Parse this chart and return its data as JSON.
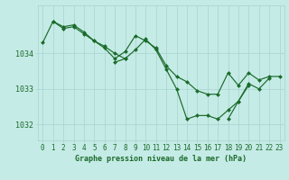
{
  "title": "Graphe pression niveau de la mer (hPa)",
  "bg_color": "#c5ebe6",
  "grid_color": "#a8d4ce",
  "line_color": "#1a6b2a",
  "marker_color": "#1a6b2a",
  "tick_label_color": "#1a6b2a",
  "ylim": [
    1031.55,
    1035.35
  ],
  "xlim": [
    -0.5,
    23.5
  ],
  "yticks": [
    1032,
    1033,
    1034
  ],
  "xticks": [
    0,
    1,
    2,
    3,
    4,
    5,
    6,
    7,
    8,
    9,
    10,
    11,
    12,
    13,
    14,
    15,
    16,
    17,
    18,
    19,
    20,
    21,
    22,
    23
  ],
  "series": [
    [
      0,
      1034.3
    ],
    [
      1,
      1034.9
    ],
    [
      2,
      1034.7
    ],
    [
      3,
      1034.75
    ],
    [
      4,
      1034.55
    ],
    [
      5,
      1034.35
    ],
    [
      6,
      1034.15
    ],
    [
      7,
      1033.85
    ],
    [
      8,
      1034.05
    ],
    [
      9,
      1034.5
    ],
    [
      10,
      1034.35
    ],
    [
      11,
      1034.15
    ],
    [
      12,
      1033.65
    ],
    [
      13,
      1033.35
    ],
    [
      14,
      1033.2
    ],
    [
      15,
      1032.95
    ],
    [
      16,
      1032.85
    ],
    [
      17,
      1032.85
    ],
    [
      18,
      1033.45
    ],
    [
      19,
      1033.1
    ],
    [
      20,
      1033.45
    ],
    [
      21,
      1033.25
    ],
    [
      22,
      1033.35
    ],
    [
      23,
      1033.35
    ]
  ],
  "series2": [
    [
      1,
      1034.9
    ],
    [
      2,
      1034.75
    ],
    [
      3,
      1034.8
    ],
    [
      4,
      1034.6
    ],
    [
      5,
      1034.35
    ],
    [
      6,
      1034.2
    ],
    [
      7,
      1034.0
    ],
    [
      8,
      1033.85
    ]
  ],
  "series3": [
    [
      7,
      1033.75
    ],
    [
      8,
      1033.85
    ],
    [
      9,
      1034.1
    ],
    [
      10,
      1034.4
    ],
    [
      11,
      1034.1
    ],
    [
      12,
      1033.55
    ],
    [
      13,
      1033.0
    ],
    [
      14,
      1032.15
    ],
    [
      15,
      1032.25
    ],
    [
      16,
      1032.25
    ],
    [
      17,
      1032.15
    ],
    [
      18,
      1032.4
    ],
    [
      19,
      1032.65
    ],
    [
      20,
      1033.15
    ],
    [
      21,
      1033.0
    ],
    [
      22,
      1033.3
    ]
  ],
  "series4": [
    [
      18,
      1032.15
    ],
    [
      19,
      1032.65
    ],
    [
      20,
      1033.1
    ]
  ]
}
